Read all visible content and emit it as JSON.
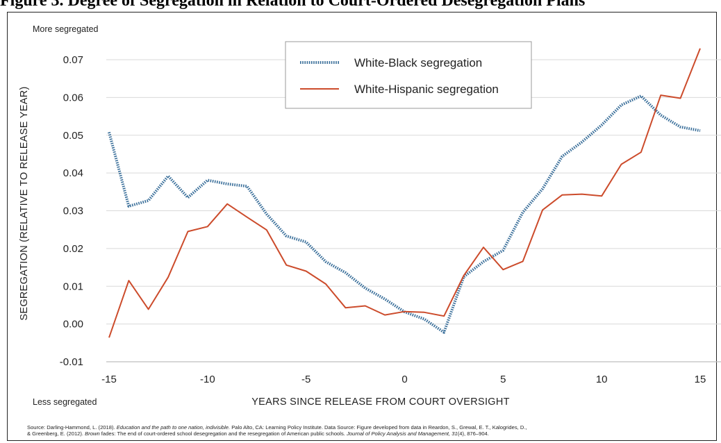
{
  "caption": "Figure 3. Degree of Segregation in Relation to Court-Ordered Desegregation Plans",
  "chart_data": {
    "type": "line",
    "title": "",
    "xlabel": "YEARS SINCE RELEASE FROM COURT OVERSIGHT",
    "ylabel": "SEGREGATION (RELATIVE TO RELEASE YEAR)",
    "top_note": "More segregated",
    "bottom_note": "Less segregated",
    "xlim": [
      -15,
      15
    ],
    "ylim": [
      -0.01,
      0.07
    ],
    "x_ticks": [
      -15,
      -10,
      -5,
      0,
      5,
      10,
      15
    ],
    "x_tick_labels": [
      "-15",
      "-10",
      "-5",
      "0",
      "5",
      "10",
      "15"
    ],
    "y_ticks": [
      -0.01,
      0.0,
      0.01,
      0.02,
      0.03,
      0.04,
      0.05,
      0.06,
      0.07
    ],
    "y_tick_labels": [
      "-0.01",
      "0.00",
      "0.01",
      "0.02",
      "0.03",
      "0.04",
      "0.05",
      "0.06",
      "0.07"
    ],
    "grid": "horizontal",
    "legend_position": "top-center",
    "x": [
      -15,
      -14,
      -13,
      -12,
      -11,
      -10,
      -9,
      -8,
      -7,
      -6,
      -5,
      -4,
      -3,
      -2,
      -1,
      0,
      1,
      2,
      3,
      4,
      5,
      6,
      7,
      8,
      9,
      10,
      11,
      12,
      13,
      14,
      15
    ],
    "series": [
      {
        "name": "White-Black segregation",
        "color": "#3a6f9a",
        "style": "dotted",
        "values": [
          0.0508,
          0.0312,
          0.0327,
          0.0392,
          0.0335,
          0.0381,
          0.0371,
          0.0365,
          0.0291,
          0.0233,
          0.0217,
          0.0165,
          0.0136,
          0.0095,
          0.0066,
          0.0032,
          0.0013,
          -0.0022,
          0.0125,
          0.0165,
          0.0195,
          0.0296,
          0.0358,
          0.0444,
          0.0482,
          0.0527,
          0.058,
          0.0604,
          0.0553,
          0.0522,
          0.0512
        ]
      },
      {
        "name": "White-Hispanic segregation",
        "color": "#cc4b2b",
        "style": "solid",
        "values": [
          -0.0036,
          0.0115,
          0.0039,
          0.0124,
          0.0245,
          0.0258,
          0.0318,
          0.0283,
          0.0249,
          0.0156,
          0.014,
          0.0106,
          0.0043,
          0.0048,
          0.0024,
          0.0033,
          0.0031,
          0.0021,
          0.0128,
          0.0203,
          0.0144,
          0.0166,
          0.0302,
          0.0342,
          0.0344,
          0.0339,
          0.0423,
          0.0455,
          0.0606,
          0.0598,
          0.073
        ]
      }
    ]
  },
  "source": {
    "part1": "Source: Darling-Hammond, L. (2018). ",
    "italic1": "Education and the path to one nation, indivisible.",
    "part2": " Palo Alto, CA: Learning Policy Institute. Data Source: Figure developed from data in Reardon, S., Grewal, E. T., Kalogrides, D.,",
    "part3": "& Greenberg, E. (2012). ",
    "italic2": "Brown",
    "part4": " fades: The end of court-ordered school desegregation and the resegregation of American public schools. ",
    "italic3": "Journal of Policy Analysis and Management, 31",
    "part5": "(4), 876–904."
  }
}
